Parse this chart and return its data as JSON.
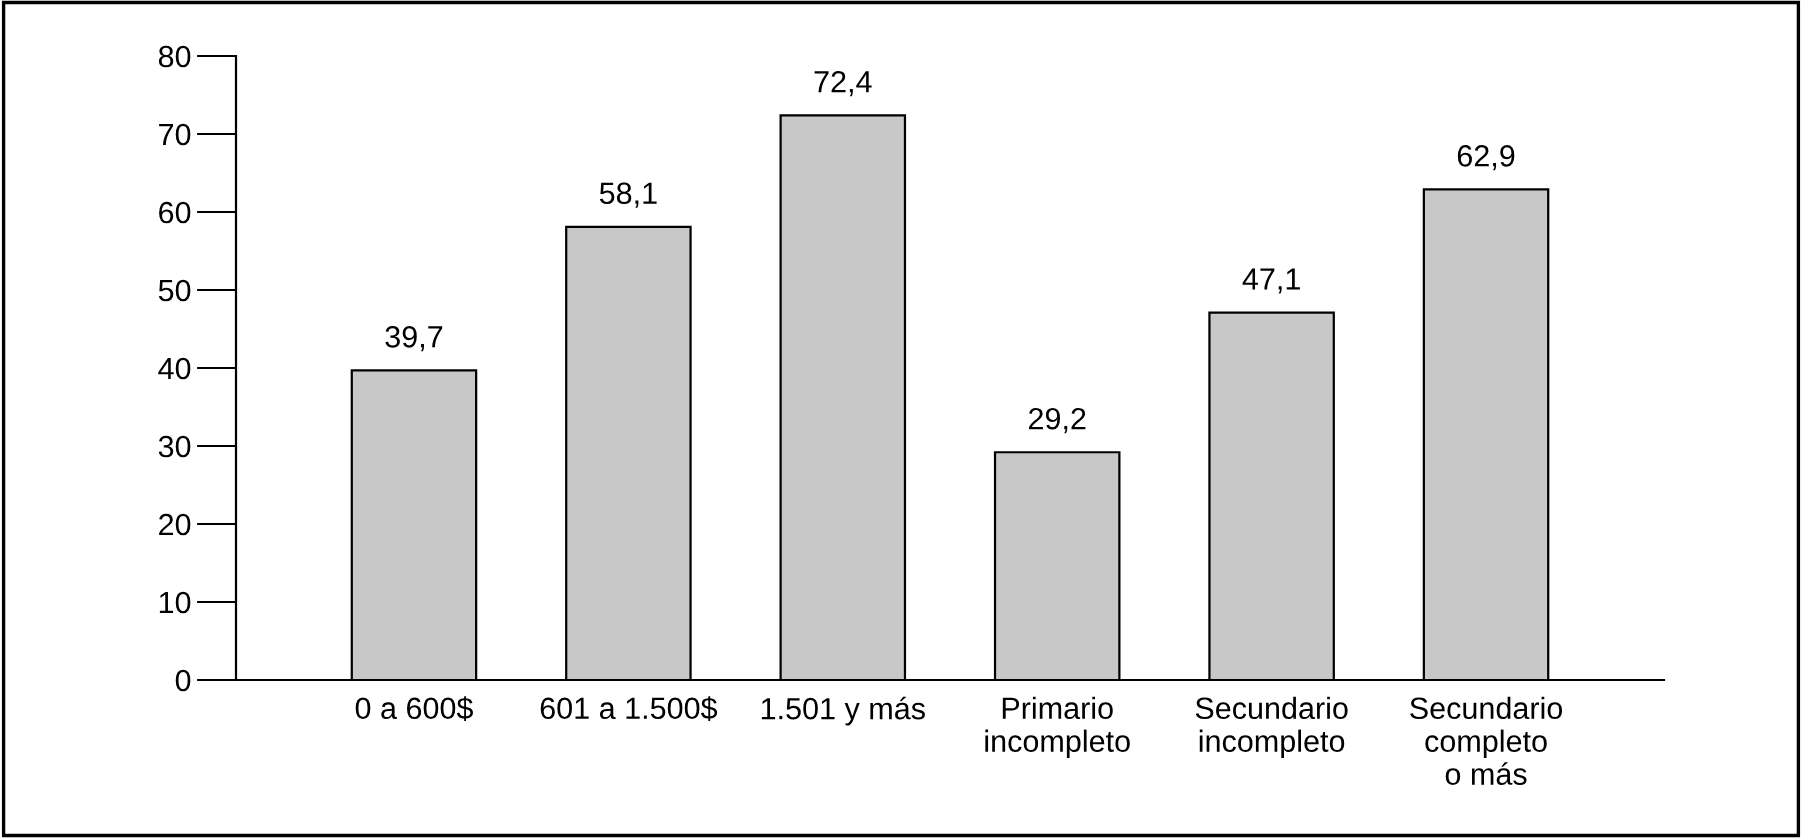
{
  "chart_data": {
    "type": "bar",
    "categories": [
      "0 a 600$",
      "601 a 1.500$",
      "1.501 y más",
      "Primario\nincompleto",
      "Secundario\nincompleto",
      "Secundario\ncompleto\no más"
    ],
    "values": [
      39.7,
      58.1,
      72.4,
      29.2,
      47.1,
      62.9
    ],
    "value_labels": [
      "39,7",
      "58,1",
      "72,4",
      "29,2",
      "47,1",
      "62,9"
    ],
    "color": "#c8c8c8",
    "ylim": [
      0,
      80
    ],
    "yticks": [
      0,
      10,
      20,
      30,
      40,
      50,
      60,
      70,
      80
    ],
    "grid": false,
    "legend": false
  }
}
